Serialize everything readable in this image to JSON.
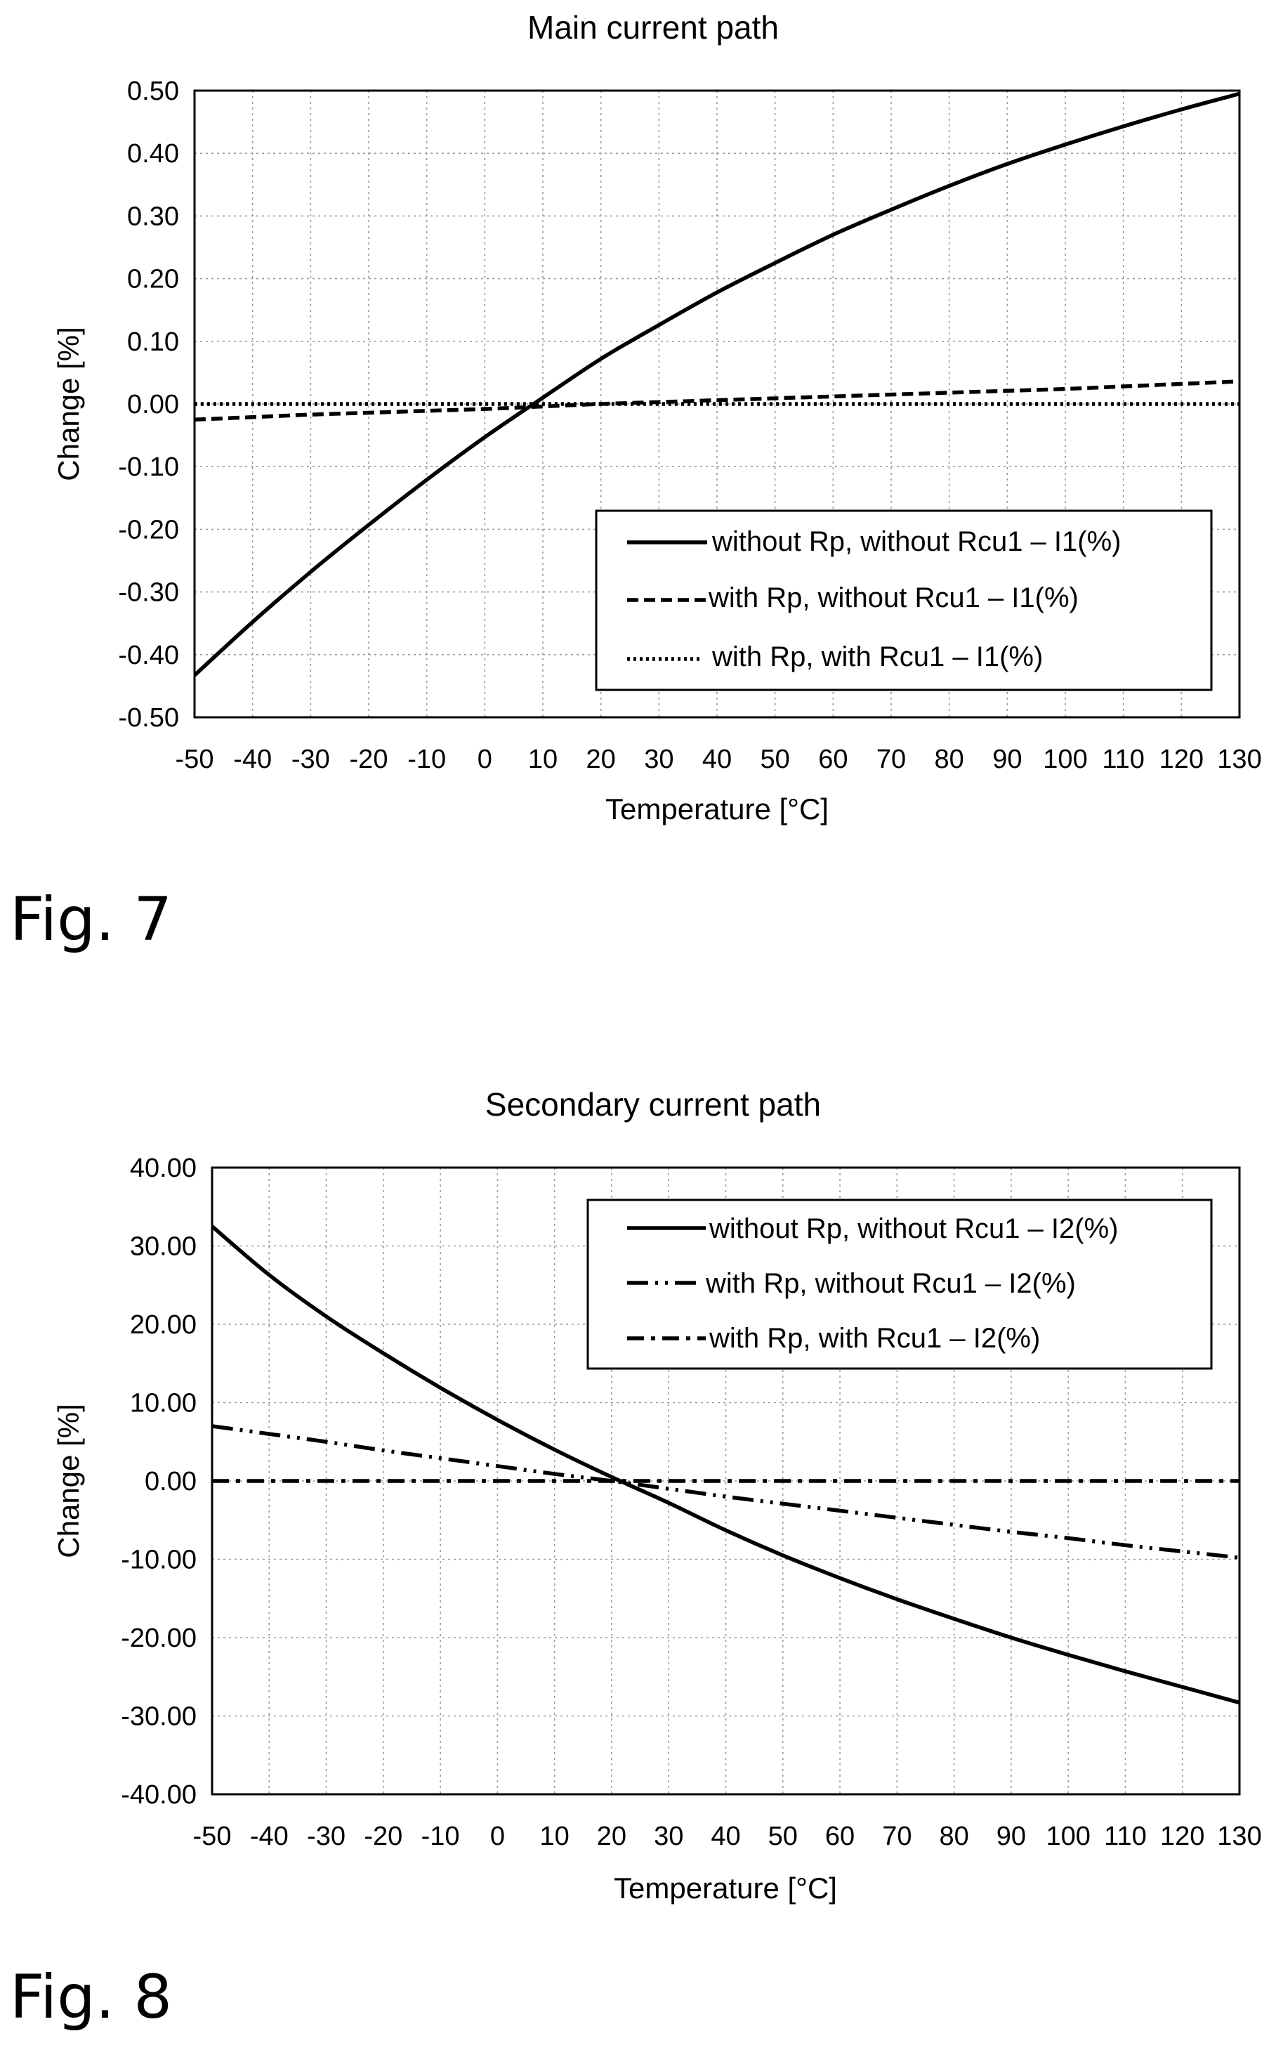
{
  "figures": [
    {
      "label": "Fig. 7"
    },
    {
      "label": "Fig. 8"
    }
  ],
  "chart_data": [
    {
      "type": "line",
      "title": "Main current path",
      "xlabel": "Temperature [°C]",
      "ylabel": "Change [%]",
      "xlim": [
        -50,
        130
      ],
      "ylim": [
        -0.5,
        0.5
      ],
      "x_ticks": [
        -50,
        -40,
        -30,
        -20,
        -10,
        0,
        10,
        20,
        30,
        40,
        50,
        60,
        70,
        80,
        90,
        100,
        110,
        120,
        130
      ],
      "y_ticks": [
        -0.5,
        -0.4,
        -0.3,
        -0.2,
        -0.1,
        0,
        0.1,
        0.2,
        0.3,
        0.4,
        0.5
      ],
      "x_tick_labels": [
        "-50",
        "-40",
        "-30",
        "-20",
        "-10",
        "0",
        "10",
        "20",
        "30",
        "40",
        "50",
        "60",
        "70",
        "80",
        "90",
        "100",
        "110",
        "120",
        "130"
      ],
      "y_tick_labels": [
        "-0.50",
        "-0.40",
        "-0.30",
        "-0.20",
        "-0.10",
        "0.00",
        "0.10",
        "0.20",
        "0.30",
        "0.40",
        "0.50"
      ],
      "grid": true,
      "legend_position": "bottom-right",
      "series": [
        {
          "name": "without Rp, without Rcu1 – I1(%)",
          "style": "solid",
          "x": [
            -50,
            -40,
            -30,
            -20,
            -10,
            0,
            10,
            20,
            30,
            40,
            50,
            60,
            70,
            80,
            90,
            100,
            110,
            120,
            130
          ],
          "y": [
            -0.433,
            -0.348,
            -0.268,
            -0.193,
            -0.121,
            -0.053,
            0.01,
            0.072,
            0.126,
            0.178,
            0.225,
            0.27,
            0.31,
            0.348,
            0.383,
            0.414,
            0.443,
            0.47,
            0.495
          ]
        },
        {
          "name": "with Rp, without Rcu1 – I1(%)",
          "style": "dashed",
          "x": [
            -50,
            -40,
            -30,
            -20,
            -10,
            0,
            10,
            20,
            30,
            40,
            50,
            60,
            70,
            80,
            90,
            100,
            110,
            120,
            130
          ],
          "y": [
            -0.025,
            -0.021,
            -0.017,
            -0.014,
            -0.011,
            -0.008,
            -0.004,
            0.0,
            0.003,
            0.006,
            0.009,
            0.012,
            0.015,
            0.018,
            0.021,
            0.024,
            0.028,
            0.032,
            0.036
          ]
        },
        {
          "name": "with Rp, with Rcu1 – I1(%)",
          "style": "dotted",
          "x": [
            -50,
            130
          ],
          "y": [
            0.0,
            0.0
          ]
        }
      ]
    },
    {
      "type": "line",
      "title": "Secondary current path",
      "xlabel": "Temperature [°C]",
      "ylabel": "Change [%]",
      "xlim": [
        -50,
        130
      ],
      "ylim": [
        -40,
        40
      ],
      "x_ticks": [
        -50,
        -40,
        -30,
        -20,
        -10,
        0,
        10,
        20,
        30,
        40,
        50,
        60,
        70,
        80,
        90,
        100,
        110,
        120,
        130
      ],
      "y_ticks": [
        -40,
        -30,
        -20,
        -10,
        0,
        10,
        20,
        30,
        40
      ],
      "x_tick_labels": [
        "-50",
        "-40",
        "-30",
        "-20",
        "-10",
        "0",
        "10",
        "20",
        "30",
        "40",
        "50",
        "60",
        "70",
        "80",
        "90",
        "100",
        "110",
        "120",
        "130"
      ],
      "y_tick_labels": [
        "-40.00",
        "-30.00",
        "-20.00",
        "-10.00",
        "0.00",
        "10.00",
        "20.00",
        "30.00",
        "40.00"
      ],
      "grid": true,
      "legend_position": "top-right",
      "series": [
        {
          "name": "without Rp, without Rcu1 – I2(%)",
          "style": "solid",
          "x": [
            -50,
            -40,
            -30,
            -20,
            -10,
            0,
            10,
            20,
            30,
            40,
            50,
            60,
            70,
            80,
            90,
            100,
            110,
            120,
            130
          ],
          "y": [
            32.5,
            26.3,
            21.0,
            16.3,
            11.9,
            7.8,
            4.0,
            0.5,
            -2.8,
            -6.3,
            -9.5,
            -12.4,
            -15.1,
            -17.6,
            -20.0,
            -22.2,
            -24.3,
            -26.3,
            -28.3
          ]
        },
        {
          "name": "with Rp, without Rcu1 – I2(%)",
          "style": "dash-dot-dot",
          "x": [
            -50,
            -40,
            -30,
            -20,
            -10,
            0,
            10,
            20,
            30,
            40,
            50,
            60,
            70,
            80,
            90,
            100,
            110,
            120,
            130
          ],
          "y": [
            7.0,
            6.0,
            5.0,
            3.9,
            2.9,
            1.9,
            0.9,
            0.0,
            -1.0,
            -2.0,
            -2.9,
            -3.8,
            -4.7,
            -5.6,
            -6.5,
            -7.3,
            -8.2,
            -9.0,
            -9.8
          ]
        },
        {
          "name": "with Rp, with Rcu1 – I2(%)",
          "style": "dash-dot",
          "x": [
            -50,
            130
          ],
          "y": [
            0.0,
            0.0
          ]
        }
      ]
    }
  ]
}
